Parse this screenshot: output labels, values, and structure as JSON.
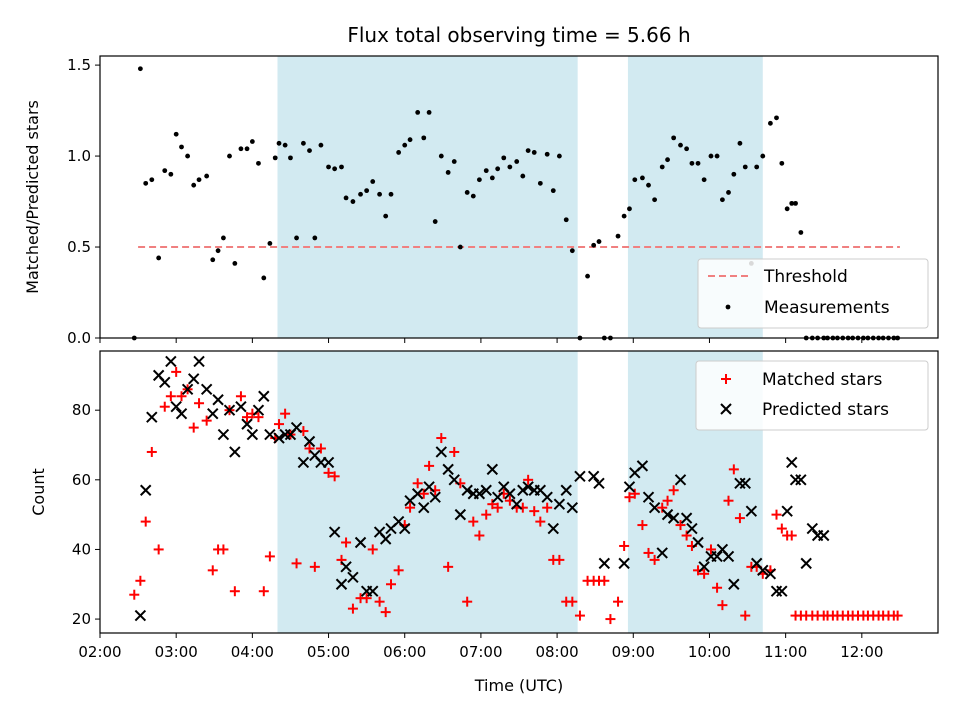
{
  "chart_data": [
    {
      "type": "scatter",
      "title": "Flux total observing time = 5.66 h",
      "xlabel": "",
      "ylabel": "Matched/Predicted stars",
      "xlim": [
        2.0,
        13.0
      ],
      "ylim": [
        0.0,
        1.55
      ],
      "yticks": [
        0.0,
        0.5,
        1.0,
        1.5
      ],
      "ytick_labels": [
        "0.0",
        "0.5",
        "1.0",
        "1.5"
      ],
      "shaded_regions": [
        [
          4.33,
          8.27
        ],
        [
          8.93,
          10.7
        ]
      ],
      "shade_color": "#add8e6",
      "legend_position": "lower right",
      "series": [
        {
          "name": "Threshold",
          "kind": "line",
          "style": "dashed",
          "color": "#f08080",
          "x": [
            2.5,
            12.5
          ],
          "y": [
            0.5,
            0.5
          ]
        },
        {
          "name": "Measurements",
          "kind": "points",
          "color": "#000000",
          "x": [
            2.45,
            2.53,
            2.6,
            2.68,
            2.77,
            2.85,
            2.93,
            3.0,
            3.07,
            3.15,
            3.23,
            3.3,
            3.4,
            3.48,
            3.55,
            3.62,
            3.7,
            3.77,
            3.85,
            3.93,
            4.0,
            4.08,
            4.15,
            4.23,
            4.3,
            4.35,
            4.43,
            4.5,
            4.58,
            4.67,
            4.75,
            4.82,
            4.9,
            5.0,
            5.08,
            5.17,
            5.23,
            5.32,
            5.42,
            5.5,
            5.58,
            5.67,
            5.75,
            5.82,
            5.92,
            6.0,
            6.07,
            6.17,
            6.25,
            6.32,
            6.4,
            6.48,
            6.57,
            6.65,
            6.73,
            6.82,
            6.9,
            6.98,
            7.07,
            7.15,
            7.22,
            7.3,
            7.38,
            7.47,
            7.55,
            7.62,
            7.7,
            7.78,
            7.87,
            7.95,
            8.03,
            8.12,
            8.2,
            8.3,
            8.4,
            8.48,
            8.55,
            8.62,
            8.7,
            8.8,
            8.88,
            8.95,
            9.02,
            9.12,
            9.2,
            9.28,
            9.38,
            9.45,
            9.53,
            9.62,
            9.7,
            9.77,
            9.85,
            9.93,
            10.02,
            10.1,
            10.17,
            10.25,
            10.32,
            10.4,
            10.47,
            10.55,
            10.62,
            10.7,
            10.8,
            10.88,
            10.95,
            11.02,
            11.08,
            11.13,
            11.2,
            11.27,
            11.35,
            11.42,
            11.5,
            11.55,
            11.62,
            11.68,
            11.75,
            11.82,
            11.88,
            11.95,
            12.02,
            12.08,
            12.15,
            12.22,
            12.28,
            12.35,
            12.42,
            12.47
          ],
          "y": [
            0.0,
            1.48,
            0.85,
            0.87,
            0.44,
            0.92,
            0.9,
            1.12,
            1.05,
            1.0,
            0.84,
            0.87,
            0.89,
            0.43,
            0.48,
            0.55,
            1.0,
            0.41,
            1.04,
            1.04,
            1.08,
            0.96,
            0.33,
            0.52,
            0.99,
            1.07,
            1.06,
            0.99,
            0.55,
            1.07,
            1.03,
            0.55,
            1.06,
            0.94,
            0.93,
            0.94,
            0.77,
            0.75,
            0.79,
            0.81,
            0.86,
            0.79,
            0.67,
            0.79,
            1.02,
            1.06,
            1.09,
            1.24,
            1.1,
            1.24,
            0.64,
            1.0,
            0.91,
            0.97,
            0.5,
            0.8,
            0.78,
            0.87,
            0.92,
            0.88,
            0.93,
            0.99,
            0.94,
            0.97,
            0.89,
            1.03,
            1.02,
            0.85,
            1.01,
            0.81,
            1.0,
            0.65,
            0.48,
            0.0,
            0.34,
            0.51,
            0.53,
            0.0,
            0.0,
            0.56,
            0.67,
            0.71,
            0.87,
            0.88,
            0.84,
            0.76,
            0.94,
            0.98,
            1.1,
            1.06,
            1.04,
            0.96,
            0.96,
            0.87,
            1.0,
            1.0,
            0.76,
            0.8,
            0.9,
            1.07,
            0.94,
            0.41,
            0.94,
            1.0,
            1.18,
            1.21,
            0.96,
            0.71,
            0.74,
            0.74,
            0.58,
            0.0,
            0.0,
            0.0,
            0.0,
            0.0,
            0.0,
            0.0,
            0.0,
            0.0,
            0.0,
            0.0,
            0.0,
            0.0,
            0.0,
            0.0,
            0.0,
            0.0,
            0.0,
            0.0
          ]
        }
      ]
    },
    {
      "type": "scatter",
      "title": "",
      "xlabel": "Time (UTC)",
      "ylabel": "Count",
      "xlim": [
        2.0,
        13.0
      ],
      "ylim": [
        16,
        97
      ],
      "yticks": [
        20,
        40,
        60,
        80
      ],
      "ytick_labels": [
        "20",
        "40",
        "60",
        "80"
      ],
      "xticks": [
        2,
        3,
        4,
        5,
        6,
        7,
        8,
        9,
        10,
        11,
        12
      ],
      "xtick_labels": [
        "02:00",
        "03:00",
        "04:00",
        "05:00",
        "06:00",
        "07:00",
        "08:00",
        "09:00",
        "10:00",
        "11:00",
        "12:00"
      ],
      "shaded_regions": [
        [
          4.33,
          8.27
        ],
        [
          8.93,
          10.7
        ]
      ],
      "shade_color": "#add8e6",
      "legend_position": "upper right",
      "series": [
        {
          "name": "Matched stars",
          "kind": "plus",
          "color": "#ff0000",
          "x": [
            2.45,
            2.53,
            2.6,
            2.68,
            2.77,
            2.85,
            2.93,
            3.0,
            3.07,
            3.15,
            3.23,
            3.3,
            3.4,
            3.48,
            3.55,
            3.62,
            3.7,
            3.77,
            3.85,
            3.93,
            4.0,
            4.08,
            4.15,
            4.23,
            4.3,
            4.35,
            4.43,
            4.5,
            4.58,
            4.67,
            4.75,
            4.82,
            4.9,
            5.0,
            5.08,
            5.17,
            5.23,
            5.32,
            5.42,
            5.5,
            5.58,
            5.67,
            5.75,
            5.82,
            5.92,
            6.0,
            6.07,
            6.17,
            6.25,
            6.32,
            6.4,
            6.48,
            6.57,
            6.65,
            6.73,
            6.82,
            6.9,
            6.98,
            7.07,
            7.15,
            7.22,
            7.3,
            7.38,
            7.47,
            7.55,
            7.62,
            7.7,
            7.78,
            7.87,
            7.95,
            8.03,
            8.12,
            8.2,
            8.3,
            8.4,
            8.48,
            8.55,
            8.62,
            8.7,
            8.8,
            8.88,
            8.95,
            9.02,
            9.12,
            9.2,
            9.28,
            9.38,
            9.45,
            9.53,
            9.62,
            9.7,
            9.77,
            9.85,
            9.93,
            10.02,
            10.1,
            10.17,
            10.25,
            10.32,
            10.4,
            10.47,
            10.55,
            10.62,
            10.7,
            10.8,
            10.88,
            10.95,
            11.02,
            11.08,
            11.13,
            11.2,
            11.27,
            11.35,
            11.42,
            11.5,
            11.55,
            11.62,
            11.68,
            11.75,
            11.82,
            11.88,
            11.95,
            12.02,
            12.08,
            12.15,
            12.22,
            12.28,
            12.35,
            12.42,
            12.47
          ],
          "y": [
            27,
            31,
            48,
            68,
            40,
            81,
            84,
            91,
            84,
            86,
            75,
            82,
            77,
            34,
            40,
            40,
            80,
            28,
            84,
            78,
            79,
            78,
            28,
            38,
            72,
            76,
            79,
            73,
            36,
            74,
            69,
            35,
            69,
            62,
            61,
            37,
            42,
            23,
            26,
            26,
            40,
            25,
            22,
            30,
            34,
            47,
            52,
            59,
            56,
            64,
            57,
            72,
            35,
            68,
            59,
            25,
            48,
            44,
            50,
            53,
            52,
            56,
            54,
            52,
            52,
            60,
            51,
            48,
            52,
            37,
            37,
            25,
            25,
            21,
            31,
            31,
            31,
            31,
            20,
            25,
            41,
            55,
            56,
            47,
            39,
            37,
            52,
            54,
            57,
            47,
            44,
            41,
            34,
            33,
            40,
            29,
            24,
            54,
            63,
            49,
            21,
            35,
            35,
            33,
            34,
            50,
            46,
            44,
            44,
            21,
            21,
            21,
            21,
            21,
            21,
            21,
            21,
            21,
            21,
            21,
            21,
            21,
            21,
            21,
            21,
            21,
            21,
            21,
            21,
            21
          ]
        },
        {
          "name": "Predicted stars",
          "kind": "cross",
          "color": "#000000",
          "x": [
            2.53,
            2.6,
            2.68,
            2.77,
            2.85,
            2.93,
            3.0,
            3.07,
            3.15,
            3.23,
            3.3,
            3.4,
            3.48,
            3.55,
            3.62,
            3.7,
            3.77,
            3.85,
            3.93,
            4.0,
            4.08,
            4.15,
            4.23,
            4.35,
            4.43,
            4.5,
            4.58,
            4.67,
            4.75,
            4.82,
            4.9,
            5.0,
            5.08,
            5.17,
            5.23,
            5.32,
            5.42,
            5.5,
            5.58,
            5.67,
            5.75,
            5.82,
            5.92,
            6.0,
            6.07,
            6.17,
            6.25,
            6.32,
            6.4,
            6.48,
            6.57,
            6.65,
            6.73,
            6.82,
            6.9,
            6.98,
            7.07,
            7.15,
            7.22,
            7.3,
            7.38,
            7.47,
            7.55,
            7.62,
            7.7,
            7.78,
            7.87,
            7.95,
            8.03,
            8.12,
            8.2,
            8.3,
            8.48,
            8.55,
            8.62,
            8.88,
            8.95,
            9.02,
            9.12,
            9.2,
            9.28,
            9.38,
            9.45,
            9.53,
            9.62,
            9.7,
            9.77,
            9.85,
            9.93,
            10.02,
            10.1,
            10.17,
            10.25,
            10.32,
            10.4,
            10.47,
            10.55,
            10.62,
            10.7,
            10.8,
            10.88,
            10.95,
            11.02,
            11.08,
            11.13,
            11.2,
            11.27,
            11.35,
            11.42,
            11.5
          ],
          "y": [
            21,
            57,
            78,
            90,
            88,
            94,
            81,
            79,
            86,
            89,
            94,
            86,
            79,
            83,
            73,
            80,
            68,
            81,
            76,
            73,
            80,
            84,
            73,
            72,
            73,
            73,
            75,
            65,
            71,
            67,
            65,
            65,
            45,
            30,
            35,
            32,
            42,
            28,
            28,
            45,
            43,
            46,
            48,
            46,
            54,
            56,
            52,
            58,
            55,
            68,
            63,
            60,
            50,
            57,
            56,
            56,
            57,
            63,
            55,
            58,
            56,
            53,
            57,
            58,
            57,
            57,
            55,
            46,
            53,
            57,
            52,
            61,
            61,
            59,
            36,
            36,
            58,
            62,
            64,
            55,
            52,
            39,
            50,
            49,
            60,
            49,
            46,
            42,
            35,
            38,
            38,
            40,
            38,
            30,
            59,
            59,
            51,
            36,
            34,
            33,
            28,
            28,
            51,
            65,
            60,
            60,
            36,
            46,
            44,
            44
          ]
        }
      ]
    }
  ]
}
